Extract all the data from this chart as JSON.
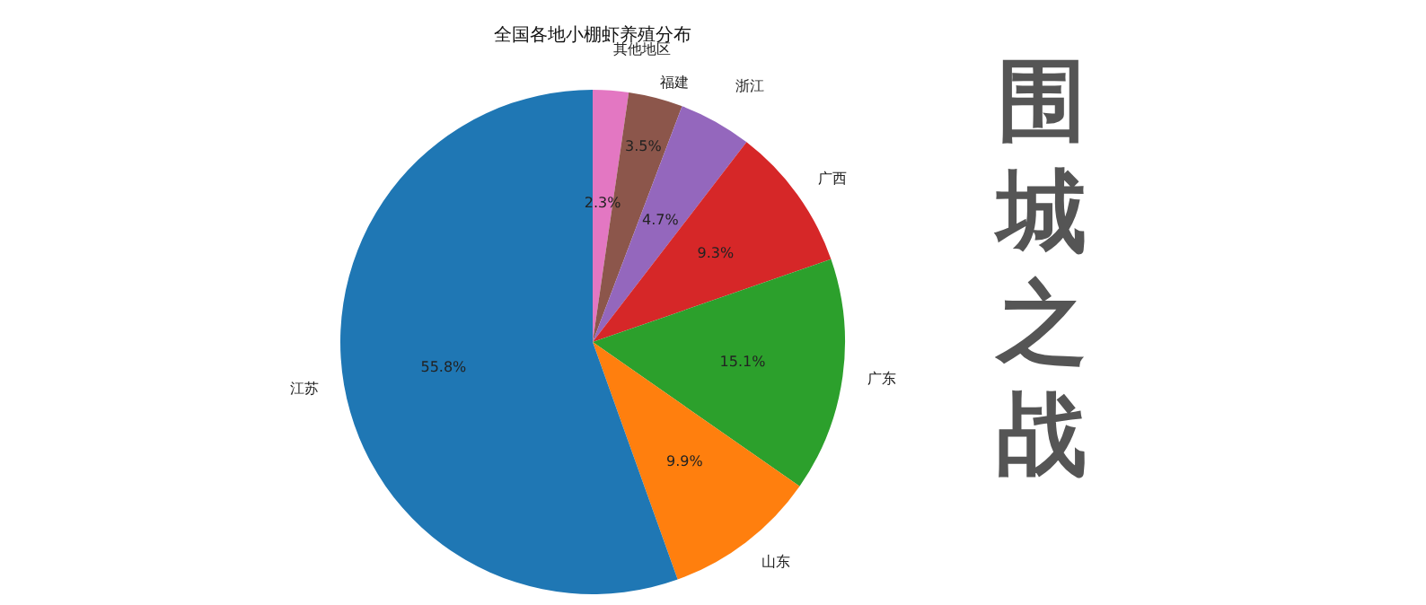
{
  "chart_data": {
    "type": "pie",
    "title": "全国各地小棚虾养殖分布",
    "categories": [
      "其他地区",
      "福建",
      "浙江",
      "广西",
      "广东",
      "山东",
      "江苏"
    ],
    "values": [
      2.3,
      3.5,
      4.7,
      9.3,
      15.1,
      9.9,
      55.8
    ],
    "value_labels": [
      "2.3%",
      "3.5%",
      "4.7%",
      "9.3%",
      "15.1%",
      "9.9%",
      "55.8%"
    ],
    "colors": [
      "#e377c2",
      "#8c564b",
      "#9467bd",
      "#d62728",
      "#2ca02c",
      "#ff7f0e",
      "#1f77b4"
    ],
    "annotations": [
      "围城之战"
    ],
    "legend": false
  }
}
